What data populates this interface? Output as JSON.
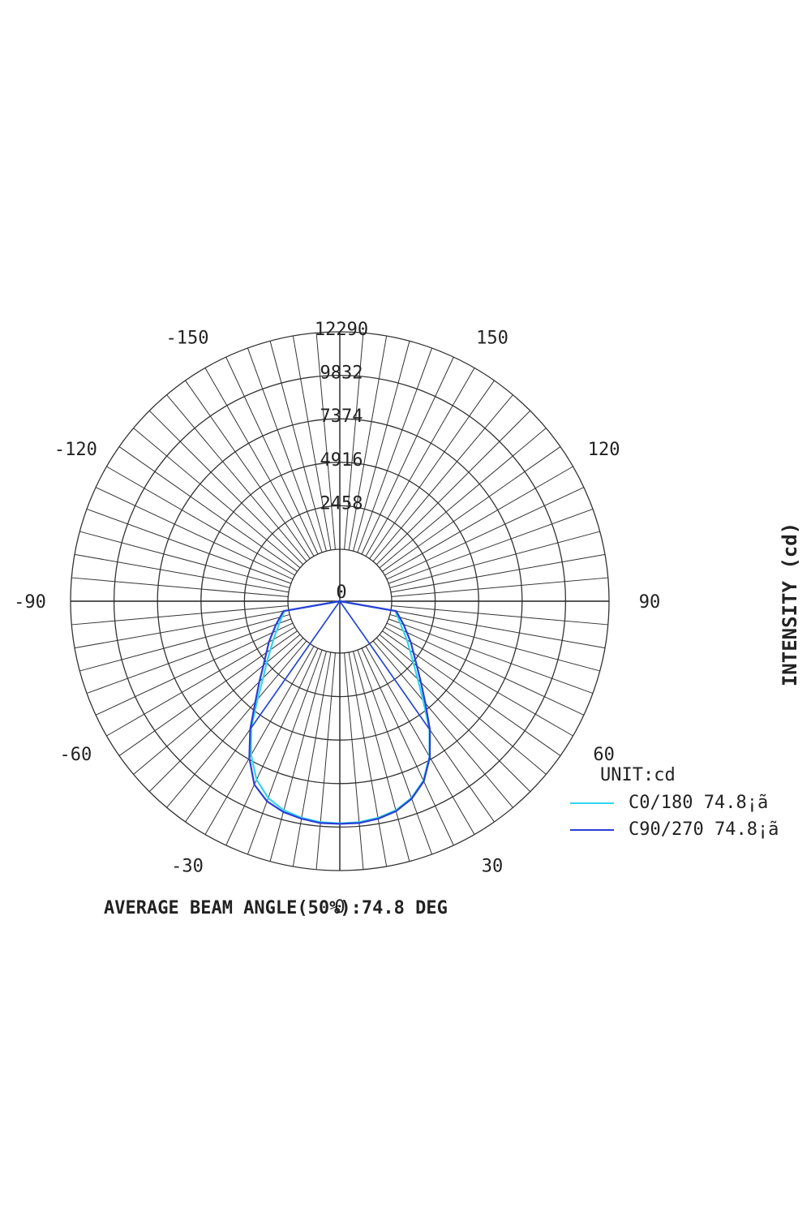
{
  "chart_data": {
    "type": "polar",
    "ylabel": "INTENSITY (cd)",
    "footer": "AVERAGE BEAM ANGLE(50%):74.8 DEG",
    "unit_label": "UNIT:cd",
    "radial_ticks": [
      "0",
      "2458",
      "4916",
      "7374",
      "9832",
      "12290"
    ],
    "radial_values": [
      0,
      2458,
      4916,
      7374,
      9832,
      12290
    ],
    "angle_labels": [
      "0",
      "30",
      "60",
      "90",
      "120",
      "150",
      "-30",
      "-60",
      "-90",
      "-120",
      "-150"
    ],
    "angle_label_values": [
      0,
      30,
      60,
      90,
      120,
      150,
      -30,
      -60,
      -90,
      -120,
      -150
    ],
    "angle_ticks_deg": [
      0,
      30,
      60,
      90,
      120,
      150,
      180
    ],
    "rmax": 12290,
    "series": [
      {
        "name": "C0/180 74.8¡ã",
        "color": "#33d6ee",
        "angles": [
          -90,
          -80,
          -70,
          -60,
          -50,
          -45,
          -40,
          -35,
          -30,
          -25,
          -20,
          -15,
          -10,
          -5,
          0,
          5,
          10,
          15,
          20,
          25,
          30,
          35,
          40,
          45,
          50,
          60,
          70,
          80,
          90
        ],
        "values": [
          0,
          250,
          700,
          1400,
          2450,
          3200,
          4300,
          5800,
          7100,
          8200,
          8900,
          9300,
          9500,
          9600,
          9620,
          9600,
          9500,
          9300,
          8900,
          8250,
          7200,
          5900,
          4400,
          3300,
          2500,
          1450,
          700,
          250,
          0
        ]
      },
      {
        "name": "C90/270 74.8¡ã",
        "color": "#2a3fd6",
        "angles": [
          -90,
          -80,
          -70,
          -60,
          -50,
          -45,
          -40,
          -35,
          -30,
          -25,
          -20,
          -15,
          -10,
          -5,
          0,
          5,
          10,
          15,
          20,
          25,
          30,
          35,
          40,
          45,
          50,
          60,
          70,
          80,
          90
        ],
        "values": [
          0,
          300,
          900,
          1700,
          2700,
          3500,
          4500,
          5900,
          7300,
          8500,
          9100,
          9400,
          9550,
          9650,
          9650,
          9650,
          9550,
          9350,
          8950,
          8300,
          7250,
          5950,
          4600,
          3550,
          2750,
          1700,
          900,
          300,
          0
        ]
      }
    ]
  }
}
